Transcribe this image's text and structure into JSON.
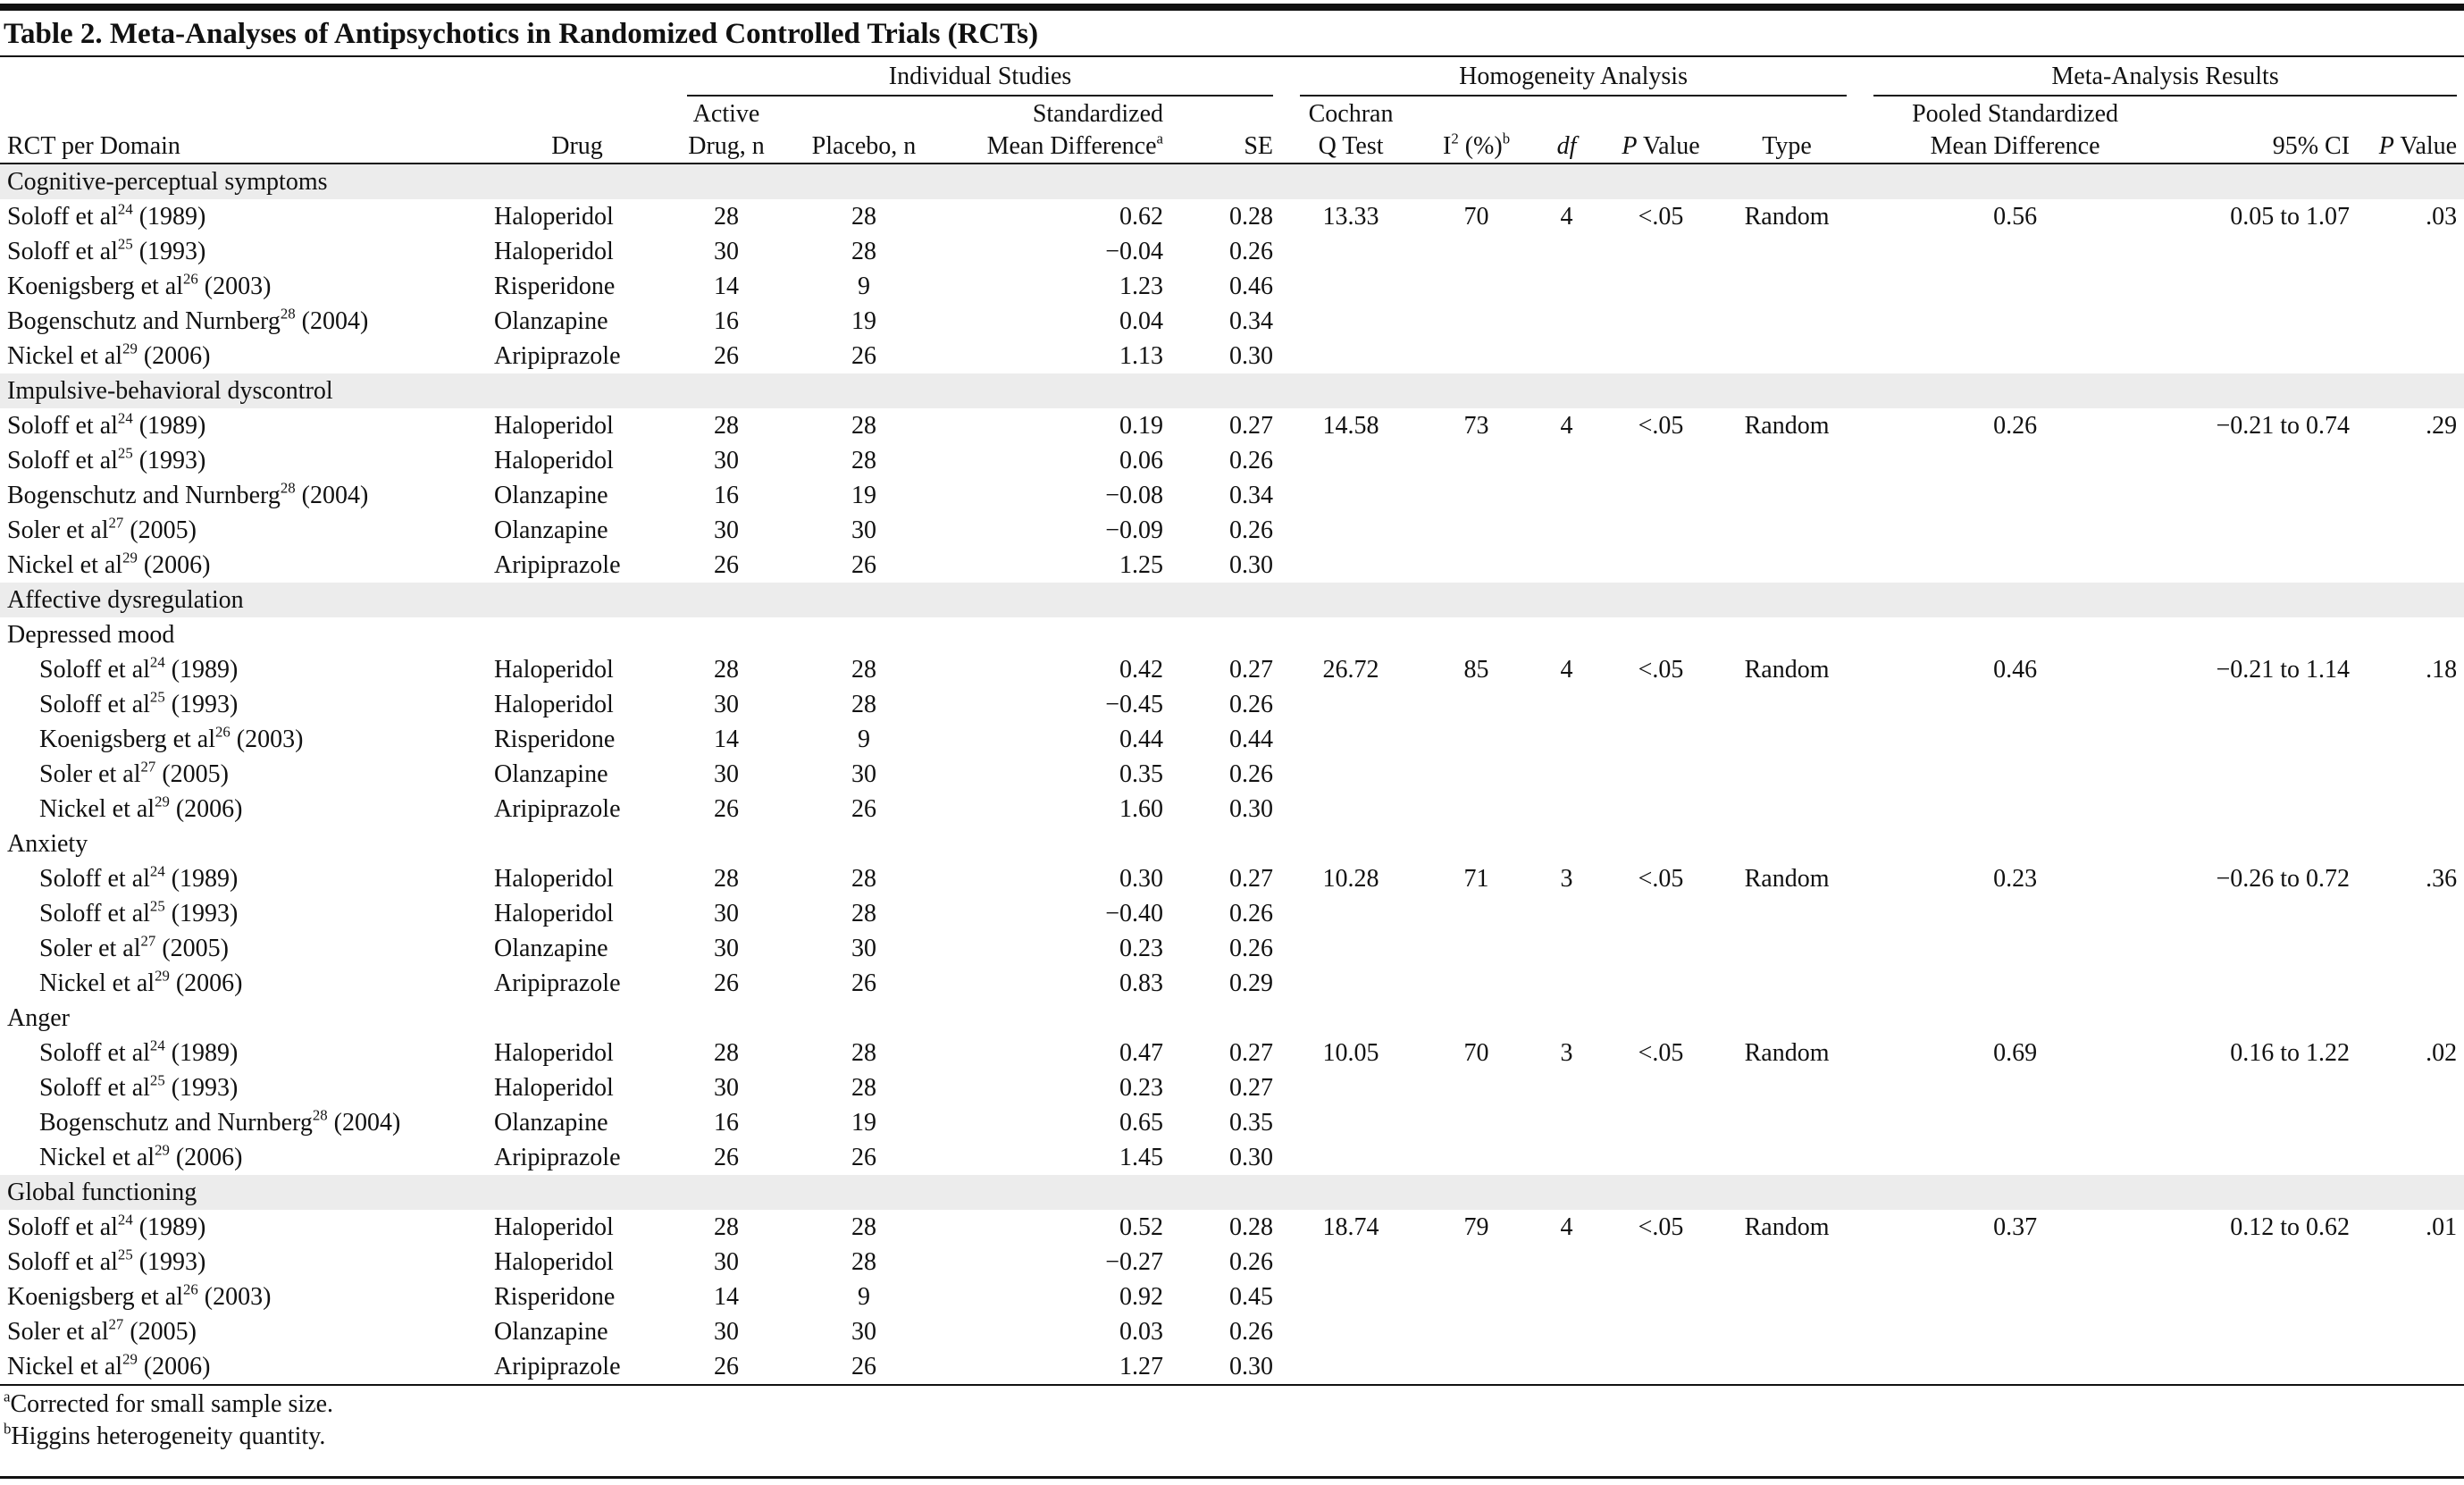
{
  "title": "Table 2. Meta-Analyses of Antipsychotics in Randomized Controlled Trials (RCTs)",
  "column_groups": [
    "Individual Studies",
    "Homogeneity Analysis",
    "Meta-Analysis Results"
  ],
  "columns": {
    "rct": "RCT per Domain",
    "drug": "Drug",
    "active": [
      "Active",
      "Drug, n"
    ],
    "placebo": "Placebo, n",
    "smd": [
      "Standardized",
      "Mean Difference",
      "a"
    ],
    "se": "SE",
    "cochran": [
      "Cochran",
      "Q Test"
    ],
    "i2": [
      "I",
      "2",
      " (%)",
      "b"
    ],
    "df": "df",
    "p": [
      "P",
      " Value"
    ],
    "type": "Type",
    "pooled": [
      "Pooled Standardized",
      "Mean Difference"
    ],
    "ci": "95% CI",
    "p2": [
      "P",
      " Value"
    ]
  },
  "sections": [
    {
      "label": "Cognitive-perceptual symptoms",
      "subsections": [
        {
          "stats": {
            "q": "13.33",
            "i2": "70",
            "df": "4",
            "p": "<.05",
            "type": "Random",
            "pooled": "0.56",
            "ci": "0.05 to 1.07",
            "p_value": ".03"
          },
          "studies": [
            {
              "author": "Soloff et al",
              "ref": "24",
              "year": "(1989)",
              "drug": "Haloperidol",
              "active": "28",
              "placebo": "28",
              "smd": "0.62",
              "se": "0.28"
            },
            {
              "author": "Soloff et al",
              "ref": "25",
              "year": "(1993)",
              "drug": "Haloperidol",
              "active": "30",
              "placebo": "28",
              "smd": "−0.04",
              "se": "0.26"
            },
            {
              "author": "Koenigsberg et al",
              "ref": "26",
              "year": "(2003)",
              "drug": "Risperidone",
              "active": "14",
              "placebo": "9",
              "smd": "1.23",
              "se": "0.46"
            },
            {
              "author": "Bogenschutz and Nurnberg",
              "ref": "28",
              "year": "(2004)",
              "drug": "Olanzapine",
              "active": "16",
              "placebo": "19",
              "smd": "0.04",
              "se": "0.34"
            },
            {
              "author": "Nickel et al",
              "ref": "29",
              "year": "(2006)",
              "drug": "Aripiprazole",
              "active": "26",
              "placebo": "26",
              "smd": "1.13",
              "se": "0.30"
            }
          ]
        }
      ]
    },
    {
      "label": "Impulsive-behavioral dyscontrol",
      "subsections": [
        {
          "stats": {
            "q": "14.58",
            "i2": "73",
            "df": "4",
            "p": "<.05",
            "type": "Random",
            "pooled": "0.26",
            "ci": "−0.21 to 0.74",
            "p_value": ".29"
          },
          "studies": [
            {
              "author": "Soloff et al",
              "ref": "24",
              "year": "(1989)",
              "drug": "Haloperidol",
              "active": "28",
              "placebo": "28",
              "smd": "0.19",
              "se": "0.27"
            },
            {
              "author": "Soloff et al",
              "ref": "25",
              "year": "(1993)",
              "drug": "Haloperidol",
              "active": "30",
              "placebo": "28",
              "smd": "0.06",
              "se": "0.26"
            },
            {
              "author": "Bogenschutz and Nurnberg",
              "ref": "28",
              "year": "(2004)",
              "drug": "Olanzapine",
              "active": "16",
              "placebo": "19",
              "smd": "−0.08",
              "se": "0.34"
            },
            {
              "author": "Soler et al",
              "ref": "27",
              "year": "(2005)",
              "drug": "Olanzapine",
              "active": "30",
              "placebo": "30",
              "smd": "−0.09",
              "se": "0.26"
            },
            {
              "author": "Nickel et al",
              "ref": "29",
              "year": "(2006)",
              "drug": "Aripiprazole",
              "active": "26",
              "placebo": "26",
              "smd": "1.25",
              "se": "0.30"
            }
          ]
        }
      ]
    },
    {
      "label": "Affective dysregulation",
      "subsections": [
        {
          "label": "Depressed mood",
          "stats": {
            "q": "26.72",
            "i2": "85",
            "df": "4",
            "p": "<.05",
            "type": "Random",
            "pooled": "0.46",
            "ci": "−0.21 to 1.14",
            "p_value": ".18"
          },
          "studies": [
            {
              "author": "Soloff et al",
              "ref": "24",
              "year": "(1989)",
              "drug": "Haloperidol",
              "active": "28",
              "placebo": "28",
              "smd": "0.42",
              "se": "0.27"
            },
            {
              "author": "Soloff et al",
              "ref": "25",
              "year": "(1993)",
              "drug": "Haloperidol",
              "active": "30",
              "placebo": "28",
              "smd": "−0.45",
              "se": "0.26"
            },
            {
              "author": "Koenigsberg et al",
              "ref": "26",
              "year": "(2003)",
              "drug": "Risperidone",
              "active": "14",
              "placebo": "9",
              "smd": "0.44",
              "se": "0.44"
            },
            {
              "author": "Soler et al",
              "ref": "27",
              "year": "(2005)",
              "drug": "Olanzapine",
              "active": "30",
              "placebo": "30",
              "smd": "0.35",
              "se": "0.26"
            },
            {
              "author": "Nickel et al",
              "ref": "29",
              "year": "(2006)",
              "drug": "Aripiprazole",
              "active": "26",
              "placebo": "26",
              "smd": "1.60",
              "se": "0.30"
            }
          ]
        },
        {
          "label": "Anxiety",
          "stats": {
            "q": "10.28",
            "i2": "71",
            "df": "3",
            "p": "<.05",
            "type": "Random",
            "pooled": "0.23",
            "ci": "−0.26 to 0.72",
            "p_value": ".36"
          },
          "studies": [
            {
              "author": "Soloff et al",
              "ref": "24",
              "year": "(1989)",
              "drug": "Haloperidol",
              "active": "28",
              "placebo": "28",
              "smd": "0.30",
              "se": "0.27"
            },
            {
              "author": "Soloff et al",
              "ref": "25",
              "year": "(1993)",
              "drug": "Haloperidol",
              "active": "30",
              "placebo": "28",
              "smd": "−0.40",
              "se": "0.26"
            },
            {
              "author": "Soler et al",
              "ref": "27",
              "year": "(2005)",
              "drug": "Olanzapine",
              "active": "30",
              "placebo": "30",
              "smd": "0.23",
              "se": "0.26"
            },
            {
              "author": "Nickel et al",
              "ref": "29",
              "year": "(2006)",
              "drug": "Aripiprazole",
              "active": "26",
              "placebo": "26",
              "smd": "0.83",
              "se": "0.29"
            }
          ]
        },
        {
          "label": "Anger",
          "stats": {
            "q": "10.05",
            "i2": "70",
            "df": "3",
            "p": "<.05",
            "type": "Random",
            "pooled": "0.69",
            "ci": "0.16 to 1.22",
            "p_value": ".02"
          },
          "studies": [
            {
              "author": "Soloff et al",
              "ref": "24",
              "year": "(1989)",
              "drug": "Haloperidol",
              "active": "28",
              "placebo": "28",
              "smd": "0.47",
              "se": "0.27"
            },
            {
              "author": "Soloff et al",
              "ref": "25",
              "year": "(1993)",
              "drug": "Haloperidol",
              "active": "30",
              "placebo": "28",
              "smd": "0.23",
              "se": "0.27"
            },
            {
              "author": "Bogenschutz and Nurnberg",
              "ref": "28",
              "year": "(2004)",
              "drug": "Olanzapine",
              "active": "16",
              "placebo": "19",
              "smd": "0.65",
              "se": "0.35"
            },
            {
              "author": "Nickel et al",
              "ref": "29",
              "year": "(2006)",
              "drug": "Aripiprazole",
              "active": "26",
              "placebo": "26",
              "smd": "1.45",
              "se": "0.30"
            }
          ]
        }
      ]
    },
    {
      "label": "Global functioning",
      "subsections": [
        {
          "stats": {
            "q": "18.74",
            "i2": "79",
            "df": "4",
            "p": "<.05",
            "type": "Random",
            "pooled": "0.37",
            "ci": "0.12 to 0.62",
            "p_value": ".01"
          },
          "studies": [
            {
              "author": "Soloff et al",
              "ref": "24",
              "year": "(1989)",
              "drug": "Haloperidol",
              "active": "28",
              "placebo": "28",
              "smd": "0.52",
              "se": "0.28"
            },
            {
              "author": "Soloff et al",
              "ref": "25",
              "year": "(1993)",
              "drug": "Haloperidol",
              "active": "30",
              "placebo": "28",
              "smd": "−0.27",
              "se": "0.26"
            },
            {
              "author": "Koenigsberg et al",
              "ref": "26",
              "year": "(2003)",
              "drug": "Risperidone",
              "active": "14",
              "placebo": "9",
              "smd": "0.92",
              "se": "0.45"
            },
            {
              "author": "Soler et al",
              "ref": "27",
              "year": "(2005)",
              "drug": "Olanzapine",
              "active": "30",
              "placebo": "30",
              "smd": "0.03",
              "se": "0.26"
            },
            {
              "author": "Nickel et al",
              "ref": "29",
              "year": "(2006)",
              "drug": "Aripiprazole",
              "active": "26",
              "placebo": "26",
              "smd": "1.27",
              "se": "0.30"
            }
          ]
        }
      ]
    }
  ],
  "footnotes": [
    {
      "mark": "a",
      "text": "Corrected for small sample size."
    },
    {
      "mark": "b",
      "text": "Higgins heterogeneity quantity."
    }
  ]
}
